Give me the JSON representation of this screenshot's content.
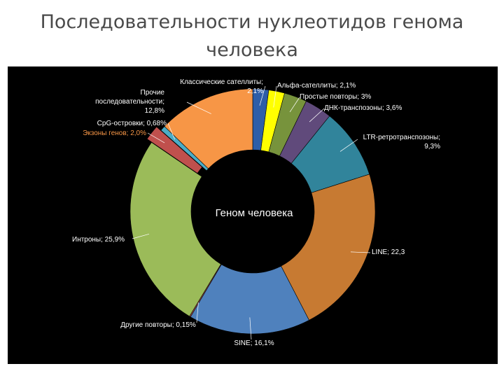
{
  "slide": {
    "title_line1": "Последовательности нуклеотидов генома",
    "title_line2": "человека"
  },
  "chart_data": {
    "type": "pie",
    "style": "donut",
    "center_label": "Геном человека",
    "legend": "none",
    "start": "top",
    "slices": [
      {
        "label": "Классические сателлиты; 2,1%",
        "value": 2.1,
        "color": "#2e5ea8"
      },
      {
        "label": "Альфа-сателлиты; 2,1%",
        "value": 2.1,
        "color": "#ffff00"
      },
      {
        "label": "Простые повторы; 3%",
        "value": 3.0,
        "color": "#77933c"
      },
      {
        "label": "ДНК-транспозоны; 3,6%",
        "value": 3.6,
        "color": "#604a7b"
      },
      {
        "label": "LTR-ретротранспозоны; 9,3%",
        "value": 9.3,
        "color": "#31849b"
      },
      {
        "label": "LINE; 22,3",
        "value": 22.3,
        "color": "#c77a32"
      },
      {
        "label": "SINE; 16,1%",
        "value": 16.1,
        "color": "#4f81bd"
      },
      {
        "label": "Другие повторы; 0,15%",
        "value": 0.15,
        "color": "#a65252"
      },
      {
        "label": "Интроны; 25,9%",
        "value": 25.9,
        "color": "#9bbb59"
      },
      {
        "label": "Экзоны генов; 2,0%",
        "value": 2.0,
        "color": "#c0504d"
      },
      {
        "label": "CpG-островки; 0,68%",
        "value": 0.68,
        "color": "#4bacc6"
      },
      {
        "label": "Прочие последовательности; 12,8%",
        "value": 12.8,
        "color": "#f79646"
      }
    ]
  }
}
